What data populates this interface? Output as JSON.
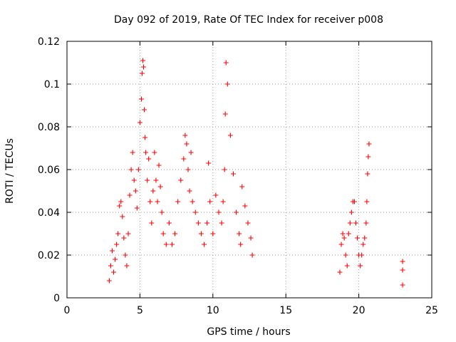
{
  "chart_data": {
    "type": "scatter",
    "title": "Day 092 of 2019, Rate Of TEC Index for receiver p008",
    "xlabel": "GPS time / hours",
    "ylabel": "ROTI / TECUs",
    "xlim": [
      0,
      25
    ],
    "ylim": [
      0,
      0.12
    ],
    "x_ticks": [
      "0",
      "5",
      "10",
      "15",
      "20",
      "25"
    ],
    "y_ticks": [
      "0",
      "0.02",
      "0.04",
      "0.06",
      "0.08",
      "0.1",
      "0.12"
    ],
    "grid": true,
    "marker": "plus",
    "marker_color": "#ff0000",
    "series": [
      {
        "x": [
          2.9,
          3.0,
          3.1,
          3.2,
          3.3,
          3.4,
          3.5,
          3.6,
          3.7,
          3.8,
          3.9,
          4.0,
          4.1,
          4.2,
          4.3,
          4.4,
          4.5,
          4.6,
          4.7,
          4.8,
          4.9,
          5.0,
          5.1,
          5.15,
          5.2,
          5.25,
          5.3,
          5.35,
          5.4,
          5.5,
          5.6,
          5.7,
          5.8,
          5.9,
          6.0,
          6.1,
          6.2,
          6.3,
          6.4,
          6.5,
          6.6,
          6.8,
          7.0,
          7.2,
          7.4,
          7.6,
          7.8,
          8.0,
          8.1,
          8.2,
          8.3,
          8.4,
          8.5,
          8.6,
          8.8,
          9.0,
          9.2,
          9.4,
          9.6,
          9.7,
          9.8,
          10.0,
          10.2,
          10.4,
          10.6,
          10.7,
          10.8,
          10.85,
          10.9,
          11.0,
          11.2,
          11.4,
          11.6,
          11.8,
          11.9,
          12.0,
          12.2,
          12.4,
          12.6,
          12.7,
          18.7,
          18.8,
          18.9,
          19.0,
          19.1,
          19.2,
          19.3,
          19.4,
          19.5,
          19.6,
          19.7,
          19.8,
          19.9,
          20.0,
          20.1,
          20.2,
          20.3,
          20.4,
          20.5,
          20.55,
          20.6,
          20.65,
          20.7,
          23.0,
          23.0,
          23.0
        ],
        "y": [
          0.008,
          0.015,
          0.022,
          0.012,
          0.018,
          0.025,
          0.03,
          0.043,
          0.045,
          0.038,
          0.028,
          0.02,
          0.015,
          0.03,
          0.048,
          0.06,
          0.068,
          0.055,
          0.05,
          0.042,
          0.06,
          0.082,
          0.093,
          0.105,
          0.111,
          0.108,
          0.088,
          0.075,
          0.068,
          0.055,
          0.065,
          0.045,
          0.035,
          0.05,
          0.068,
          0.055,
          0.045,
          0.062,
          0.052,
          0.04,
          0.03,
          0.025,
          0.035,
          0.025,
          0.03,
          0.045,
          0.055,
          0.065,
          0.076,
          0.072,
          0.06,
          0.05,
          0.068,
          0.045,
          0.04,
          0.035,
          0.03,
          0.025,
          0.035,
          0.063,
          0.045,
          0.03,
          0.048,
          0.04,
          0.035,
          0.045,
          0.06,
          0.086,
          0.11,
          0.1,
          0.076,
          0.058,
          0.04,
          0.03,
          0.025,
          0.052,
          0.043,
          0.035,
          0.028,
          0.02,
          0.012,
          0.025,
          0.03,
          0.028,
          0.02,
          0.015,
          0.03,
          0.035,
          0.04,
          0.045,
          0.045,
          0.035,
          0.028,
          0.02,
          0.015,
          0.02,
          0.025,
          0.028,
          0.035,
          0.045,
          0.058,
          0.066,
          0.072,
          0.017,
          0.013,
          0.006
        ]
      }
    ]
  }
}
